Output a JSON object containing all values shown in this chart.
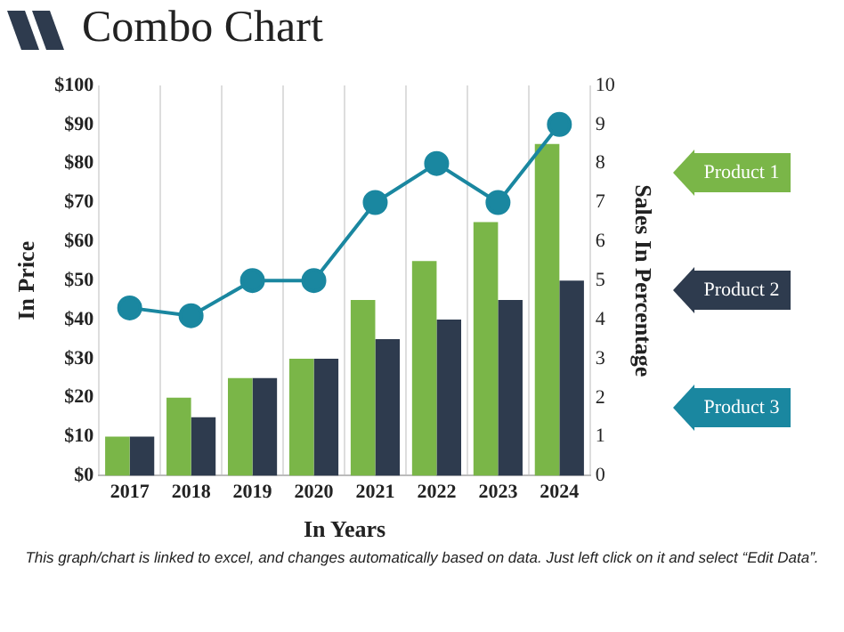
{
  "chart_data": {
    "type": "bar",
    "title": "Combo Chart",
    "xlabel": "In Years",
    "ylabel": "In Price",
    "y2label": "Sales In Percentage",
    "categories": [
      "2017",
      "2018",
      "2019",
      "2020",
      "2021",
      "2022",
      "2023",
      "2024"
    ],
    "series": [
      {
        "name": "Product 1",
        "color": "#7ab648",
        "values": [
          10,
          20,
          25,
          30,
          45,
          55,
          65,
          85
        ]
      },
      {
        "name": "Product 2",
        "color": "#2e3b4e",
        "values": [
          10,
          15,
          25,
          30,
          35,
          40,
          45,
          50
        ]
      },
      {
        "name": "Product 3",
        "color": "#1a87a0",
        "type": "line",
        "axis": "y2",
        "values": [
          4.3,
          4.1,
          5,
          5,
          7,
          8,
          7,
          9
        ]
      }
    ],
    "ylim": [
      0,
      100
    ],
    "yticks": [
      {
        "value": 0,
        "label": "$0"
      },
      {
        "value": 10,
        "label": "$10"
      },
      {
        "value": 20,
        "label": "$20"
      },
      {
        "value": 30,
        "label": "$30"
      },
      {
        "value": 40,
        "label": "$40"
      },
      {
        "value": 50,
        "label": "$50"
      },
      {
        "value": 60,
        "label": "$60"
      },
      {
        "value": 70,
        "label": "$70"
      },
      {
        "value": 80,
        "label": "$80"
      },
      {
        "value": 90,
        "label": "$90"
      },
      {
        "value": 100,
        "label": "$100"
      }
    ],
    "y2lim": [
      0,
      10
    ],
    "y2ticks": [
      0,
      1,
      2,
      3,
      4,
      5,
      6,
      7,
      8,
      9,
      10
    ],
    "grid": "x",
    "legend": "right",
    "marker": "circle",
    "annotations": [
      "This graph/chart is linked to excel, and changes automatically based on data. Just left click on it and select “Edit Data”."
    ]
  }
}
